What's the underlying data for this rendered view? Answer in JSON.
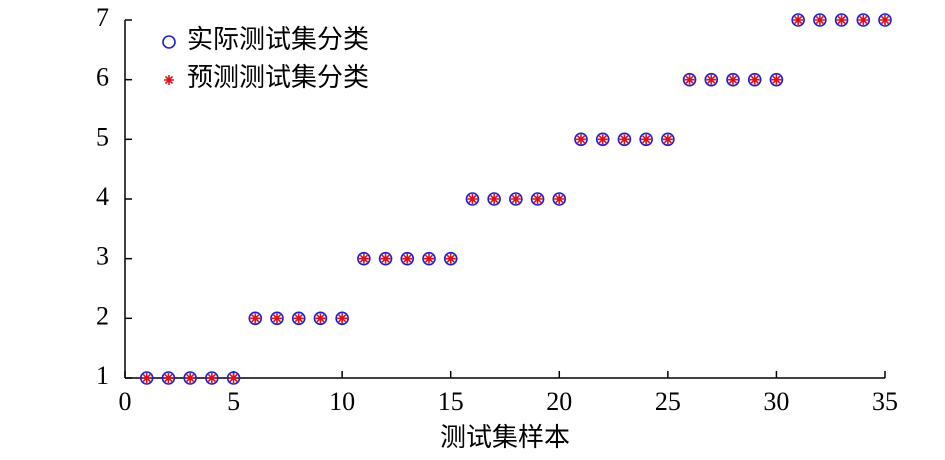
{
  "chart_data": {
    "type": "scatter",
    "x_label": "测试集样本",
    "x": [
      1,
      2,
      3,
      4,
      5,
      6,
      7,
      8,
      9,
      10,
      11,
      12,
      13,
      14,
      15,
      16,
      17,
      18,
      19,
      20,
      21,
      22,
      23,
      24,
      25,
      26,
      27,
      28,
      29,
      30,
      31,
      32,
      33,
      34,
      35
    ],
    "series": [
      {
        "name": "实际测试集分类",
        "color": "#1f1fd0",
        "marker": "circle",
        "values": [
          1,
          1,
          1,
          1,
          1,
          2,
          2,
          2,
          2,
          2,
          3,
          3,
          3,
          3,
          3,
          4,
          4,
          4,
          4,
          4,
          5,
          5,
          5,
          5,
          5,
          6,
          6,
          6,
          6,
          6,
          7,
          7,
          7,
          7,
          7
        ]
      },
      {
        "name": "预测测试集分类",
        "color": "#e0101a",
        "marker": "star",
        "values": [
          1,
          1,
          1,
          1,
          1,
          2,
          2,
          2,
          2,
          2,
          3,
          3,
          3,
          3,
          3,
          4,
          4,
          4,
          4,
          4,
          5,
          5,
          5,
          5,
          5,
          6,
          6,
          6,
          6,
          6,
          7,
          7,
          7,
          7,
          7
        ]
      }
    ],
    "xlim": [
      0,
      35
    ],
    "ylim": [
      1,
      7
    ],
    "xticks": [
      0,
      5,
      10,
      15,
      20,
      25,
      30,
      35
    ],
    "yticks": [
      1,
      2,
      3,
      4,
      5,
      6,
      7
    ],
    "legend": "upper-left"
  }
}
